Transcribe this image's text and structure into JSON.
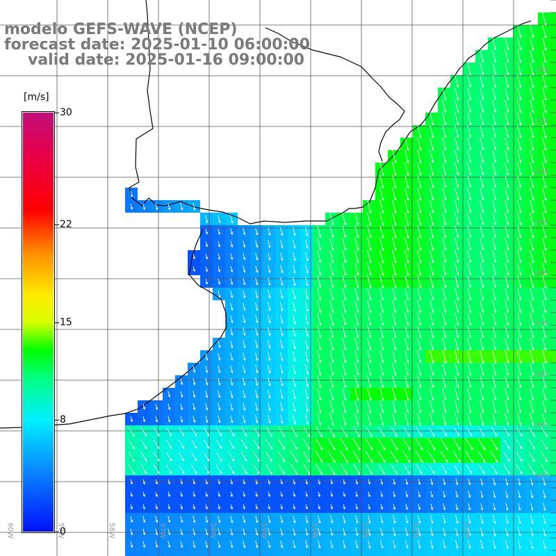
{
  "title": {
    "line1": "modelo GEFS-WAVE (NCEP)",
    "line2": "forecast date: 2025-01-10 06:00:00",
    "line3": "valid date: 2025-01-16 09:00:00"
  },
  "colorbar": {
    "unit": "[m/s]",
    "min": 0,
    "max": 30,
    "tick_labels": [
      "30",
      "22",
      "15",
      "8",
      "0"
    ],
    "tick_values": [
      30,
      22,
      15,
      8,
      0
    ],
    "stops": [
      {
        "v": 0,
        "c": "#0010ff"
      },
      {
        "v": 4,
        "c": "#0a7dff"
      },
      {
        "v": 8,
        "c": "#00f0ff"
      },
      {
        "v": 11,
        "c": "#00ff80"
      },
      {
        "v": 13,
        "c": "#00ff00"
      },
      {
        "v": 15,
        "c": "#d8ff00"
      },
      {
        "v": 17,
        "c": "#ffea00"
      },
      {
        "v": 20,
        "c": "#ff8c00"
      },
      {
        "v": 23,
        "c": "#ff0000"
      },
      {
        "v": 27,
        "c": "#e8004a"
      },
      {
        "v": 30,
        "c": "#c0107a"
      }
    ]
  },
  "axis_labels": {
    "lon": [
      "60W",
      "59W",
      "58W",
      "57W",
      "56W",
      "55W",
      "54W",
      "53W",
      "52W",
      "51W"
    ],
    "lat": [
      "32S",
      "33S",
      "34S",
      "35S",
      "36S",
      "37S",
      "38S",
      "39S",
      "40S"
    ]
  },
  "colors": {
    "coast": "#000000",
    "grid": "#555555",
    "arrow": "#ffffff",
    "title": "#7a7a7a"
  }
}
